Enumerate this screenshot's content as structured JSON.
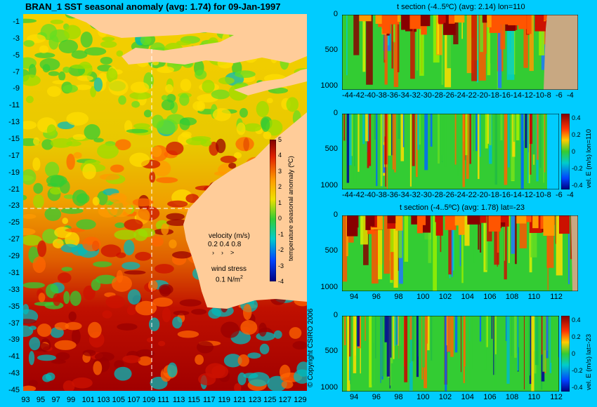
{
  "map": {
    "title": "BRAN_1 SST seasonal anomaly (avg: 1.74) for 09-Jan-1997",
    "lat_ticks": [
      "-1",
      "-3",
      "-5",
      "-7",
      "-9",
      "-11",
      "-13",
      "-15",
      "-17",
      "-19",
      "-21",
      "-23",
      "-25",
      "-27",
      "-29",
      "-31",
      "-33",
      "-35",
      "-37",
      "-39",
      "-41",
      "-43",
      "-45"
    ],
    "lon_ticks": [
      "93",
      "95",
      "97",
      "99",
      "101",
      "103",
      "105",
      "107",
      "109",
      "111",
      "113",
      "115",
      "117",
      "119",
      "121",
      "123",
      "125",
      "127",
      "129"
    ],
    "colorbar_label": "temperature seasonal anomaly (ºC)",
    "colorbar_ticks": [
      "5",
      "4",
      "3",
      "2",
      "1",
      "0",
      "-1",
      "-2",
      "-3",
      "-4"
    ],
    "velocity_label": "velocity (m/s)",
    "velocity_scale": "0.2 0.4 0.8",
    "wind_label": "wind stress",
    "wind_scale": "0.1 N/m",
    "wind_scale_sup": "2",
    "copyright": "© Copyright CSIRO 2006",
    "colors": {
      "land": "#ffcc99",
      "background": "#00ccff",
      "section_land": "#c8a882",
      "crosshair": "#ffffff"
    }
  },
  "panels": [
    {
      "title": "t section (-4..5ºC) (avg: 2.14) lon=110",
      "y_ticks": [
        "0",
        "500",
        "1000"
      ],
      "x_ticks": [
        "-44",
        "-42",
        "-40",
        "-38",
        "-36",
        "-34",
        "-32",
        "-30",
        "-28",
        "-26",
        "-24",
        "-22",
        "-20",
        "-18",
        "-16",
        "-14",
        "-12",
        "-10",
        "-8",
        "-6",
        "-4"
      ]
    },
    {
      "title": "",
      "y_ticks": [
        "0",
        "500",
        "1000"
      ],
      "x_ticks": [
        "-44",
        "-42",
        "-40",
        "-38",
        "-36",
        "-34",
        "-32",
        "-30",
        "-28",
        "-26",
        "-24",
        "-22",
        "-20",
        "-18",
        "-16",
        "-14",
        "-12",
        "-10",
        "-8",
        "-6",
        "-4"
      ],
      "colorbar_label": "vel. E (m/s) lon=110",
      "colorbar_ticks": [
        "0.4",
        "0.2",
        "0",
        "-0.2",
        "-0.4"
      ]
    },
    {
      "title": "t section (-4..5ºC) (avg: 1.78) lat=-23",
      "y_ticks": [
        "0",
        "500",
        "1000"
      ],
      "x_ticks": [
        "94",
        "96",
        "98",
        "100",
        "102",
        "104",
        "106",
        "108",
        "110",
        "112"
      ]
    },
    {
      "title": "",
      "y_ticks": [
        "0",
        "500",
        "1000"
      ],
      "x_ticks": [
        "94",
        "96",
        "98",
        "100",
        "102",
        "104",
        "106",
        "108",
        "110",
        "112"
      ],
      "colorbar_label": "vel. E (m/s) lat=-23",
      "colorbar_ticks": [
        "0.4",
        "0.2",
        "0",
        "-0.2",
        "-0.4"
      ]
    }
  ],
  "chart_data": [
    {
      "type": "heatmap",
      "title": "BRAN_1 SST seasonal anomaly (avg: 1.74) for 09-Jan-1997",
      "xlim": [
        93,
        130
      ],
      "ylim": [
        -45,
        0
      ],
      "colorbar_range": [
        -4,
        5
      ],
      "colorbar_label": "temperature seasonal anomaly (ºC)",
      "crosshair": {
        "lon": 110,
        "lat": -23
      }
    },
    {
      "type": "heatmap",
      "title": "t section (-4..5ºC) (avg: 2.14) lon=110",
      "xlim": [
        -45,
        -3
      ],
      "ylim": [
        1050,
        0
      ],
      "land_from_x": -8
    },
    {
      "type": "heatmap",
      "title": "",
      "xlim": [
        -45,
        -3
      ],
      "ylim": [
        1050,
        0
      ],
      "colorbar_range": [
        -0.4,
        0.4
      ],
      "colorbar_label": "vel. E (m/s) lon=110"
    },
    {
      "type": "heatmap",
      "title": "t section (-4..5ºC) (avg: 1.78) lat=-23",
      "xlim": [
        92.8,
        114
      ],
      "ylim": [
        1050,
        0
      ],
      "land_from_x": 113.3
    },
    {
      "type": "heatmap",
      "title": "",
      "xlim": [
        92.8,
        114
      ],
      "ylim": [
        1050,
        0
      ],
      "colorbar_range": [
        -0.4,
        0.4
      ],
      "colorbar_label": "vel. E (m/s) lat=-23"
    }
  ]
}
